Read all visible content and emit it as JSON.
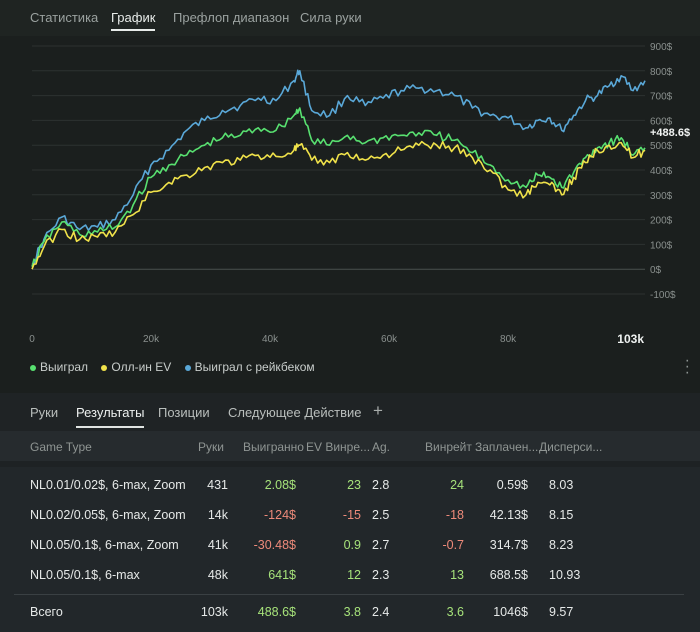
{
  "top_tabs": [
    "Статистика",
    "График",
    "Префлоп диапазон",
    "Сила руки"
  ],
  "active_top_tab": "График",
  "chart_data": {
    "type": "line",
    "x_ticks": [
      "0",
      "20k",
      "40k",
      "60k",
      "80k",
      "103k"
    ],
    "y_ticks": [
      "900$",
      "800$",
      "700$",
      "600$",
      "500$",
      "400$",
      "300$",
      "200$",
      "100$",
      "0$",
      "-100$"
    ],
    "ylim": [
      -100,
      900
    ],
    "xlim": [
      0,
      103000
    ],
    "end_label": "+488.6$",
    "series": [
      {
        "name": "Выиграл с рейкбеком",
        "color": "#5aa8d8",
        "x": [
          0,
          2000,
          5000,
          8000,
          11000,
          14000,
          17000,
          20000,
          23000,
          26000,
          29000,
          32000,
          35000,
          38000,
          41000,
          44000,
          45000,
          47000,
          50000,
          53000,
          56000,
          59000,
          62000,
          65000,
          68000,
          71000,
          74000,
          77000,
          80000,
          83000,
          85000,
          87000,
          89000,
          91000,
          93000,
          95000,
          97000,
          99000,
          101000,
          103000
        ],
        "y": [
          20,
          120,
          210,
          160,
          170,
          200,
          300,
          420,
          480,
          560,
          600,
          640,
          660,
          690,
          680,
          760,
          800,
          640,
          620,
          700,
          660,
          690,
          720,
          730,
          720,
          700,
          650,
          620,
          610,
          570,
          600,
          610,
          560,
          620,
          680,
          700,
          740,
          780,
          720,
          760
        ]
      },
      {
        "name": "Выиграл",
        "color": "#58e070",
        "x": [
          0,
          2000,
          5000,
          8000,
          11000,
          14000,
          17000,
          20000,
          23000,
          26000,
          29000,
          32000,
          35000,
          38000,
          41000,
          44000,
          45000,
          47000,
          50000,
          53000,
          56000,
          59000,
          62000,
          65000,
          68000,
          71000,
          74000,
          77000,
          80000,
          83000,
          85000,
          87000,
          89000,
          91000,
          93000,
          95000,
          97000,
          99000,
          101000,
          103000
        ],
        "y": [
          10,
          110,
          190,
          140,
          150,
          170,
          260,
          370,
          420,
          460,
          500,
          530,
          540,
          570,
          560,
          620,
          650,
          520,
          500,
          540,
          510,
          530,
          540,
          550,
          540,
          520,
          470,
          420,
          360,
          330,
          380,
          370,
          330,
          390,
          450,
          490,
          510,
          530,
          460,
          489
        ]
      },
      {
        "name": "Олл-ин EV",
        "color": "#f0e24a",
        "x": [
          0,
          2000,
          5000,
          8000,
          11000,
          14000,
          17000,
          20000,
          23000,
          26000,
          29000,
          32000,
          35000,
          38000,
          41000,
          44000,
          45000,
          47000,
          50000,
          53000,
          56000,
          59000,
          62000,
          65000,
          68000,
          71000,
          74000,
          77000,
          80000,
          83000,
          85000,
          87000,
          89000,
          91000,
          93000,
          95000,
          97000,
          99000,
          101000,
          103000
        ],
        "y": [
          0,
          90,
          160,
          120,
          130,
          150,
          220,
          310,
          350,
          380,
          410,
          430,
          440,
          460,
          455,
          480,
          500,
          440,
          430,
          470,
          440,
          460,
          480,
          500,
          500,
          490,
          450,
          400,
          320,
          300,
          350,
          340,
          300,
          370,
          430,
          480,
          500,
          510,
          450,
          480
        ]
      }
    ]
  },
  "legend": [
    {
      "label": "Выиграл",
      "color": "#58e070"
    },
    {
      "label": "Олл-ин EV",
      "color": "#f0e24a"
    },
    {
      "label": "Выиграл с рейкбеком",
      "color": "#5aa8d8"
    }
  ],
  "bottom_tabs": [
    "Руки",
    "Результаты",
    "Позиции",
    "Следующее Действие"
  ],
  "active_bottom_tab": "Результаты",
  "add_tab_label": "+",
  "table": {
    "columns": [
      "Game Type",
      "Руки",
      "Выигранно",
      "EV Винре...",
      "Ag.",
      "Винрейт ...",
      "Заплачен...",
      "Дисперси..."
    ],
    "rows": [
      {
        "game": "NL0.01/0.02$, 6-max, Zoom",
        "hands": "431",
        "won": "2.08$",
        "ev": "23",
        "ag": "2.8",
        "winrate": "24",
        "paid": "0.59$",
        "disp": "8.03",
        "won_sign": "pos",
        "ev_sign": "pos",
        "wr_sign": "pos"
      },
      {
        "game": "NL0.02/0.05$, 6-max, Zoom",
        "hands": "14k",
        "won": "-124$",
        "ev": "-15",
        "ag": "2.5",
        "winrate": "-18",
        "paid": "42.13$",
        "disp": "8.15",
        "won_sign": "neg",
        "ev_sign": "neg",
        "wr_sign": "neg"
      },
      {
        "game": "NL0.05/0.1$, 6-max, Zoom",
        "hands": "41k",
        "won": "-30.48$",
        "ev": "0.9",
        "ag": "2.7",
        "winrate": "-0.7",
        "paid": "314.7$",
        "disp": "8.23",
        "won_sign": "neg",
        "ev_sign": "pos",
        "wr_sign": "neg"
      },
      {
        "game": "NL0.05/0.1$, 6-max",
        "hands": "48k",
        "won": "641$",
        "ev": "12",
        "ag": "2.3",
        "winrate": "13",
        "paid": "688.5$",
        "disp": "10.93",
        "won_sign": "pos",
        "ev_sign": "pos",
        "wr_sign": "pos"
      }
    ],
    "total": {
      "game": "Всего",
      "hands": "103k",
      "won": "488.6$",
      "ev": "3.8",
      "ag": "2.4",
      "winrate": "3.6",
      "paid": "1046$",
      "disp": "9.57",
      "won_sign": "pos",
      "ev_sign": "pos",
      "wr_sign": "pos"
    }
  }
}
